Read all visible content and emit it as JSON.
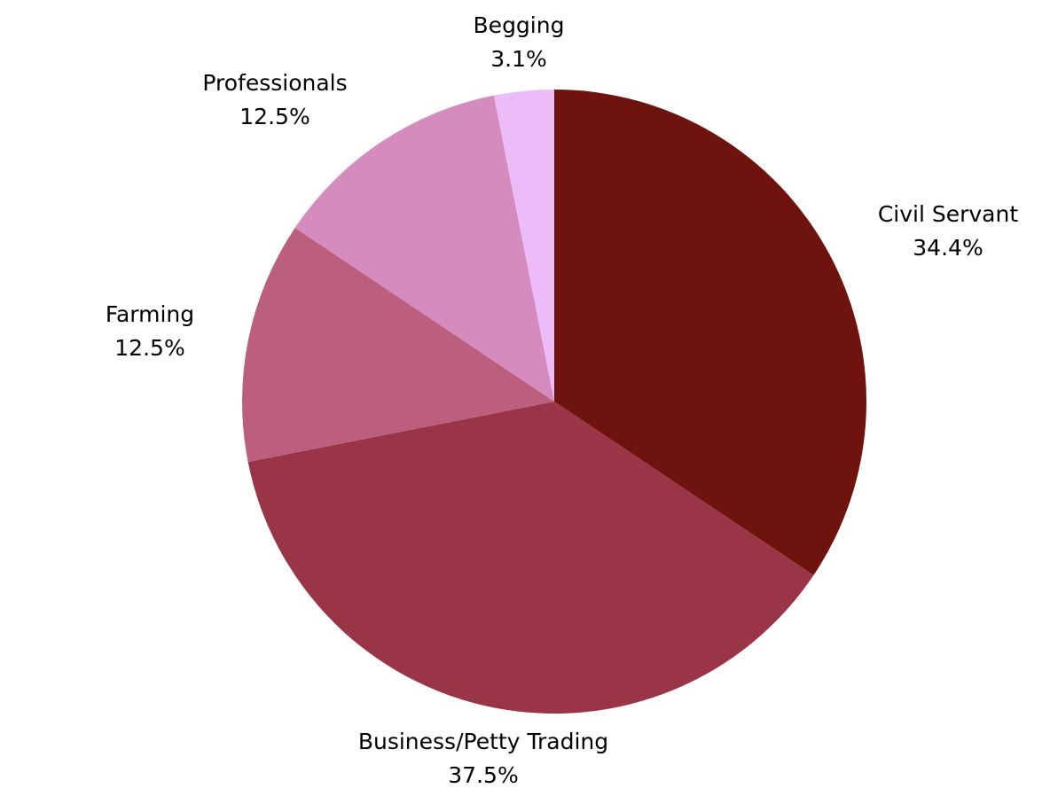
{
  "chart_data": {
    "type": "pie",
    "title": "",
    "start_angle_deg": 0,
    "direction": "clockwise",
    "slices": [
      {
        "label": "Civil Servant",
        "percent_text": "34.4%",
        "value": 34.4,
        "color": "#6e130d"
      },
      {
        "label": "Business/Petty Trading",
        "percent_text": "37.5%",
        "value": 37.5,
        "color": "#993546"
      },
      {
        "label": "Farming",
        "percent_text": "12.5%",
        "value": 12.5,
        "color": "#bc5e7e"
      },
      {
        "label": "Professionals",
        "percent_text": "12.5%",
        "value": 12.5,
        "color": "#d68bbf"
      },
      {
        "label": "Begging",
        "percent_text": "3.1%",
        "value": 3.1,
        "color": "#ebbcf7"
      }
    ],
    "legend": "none",
    "labels": "outside"
  }
}
